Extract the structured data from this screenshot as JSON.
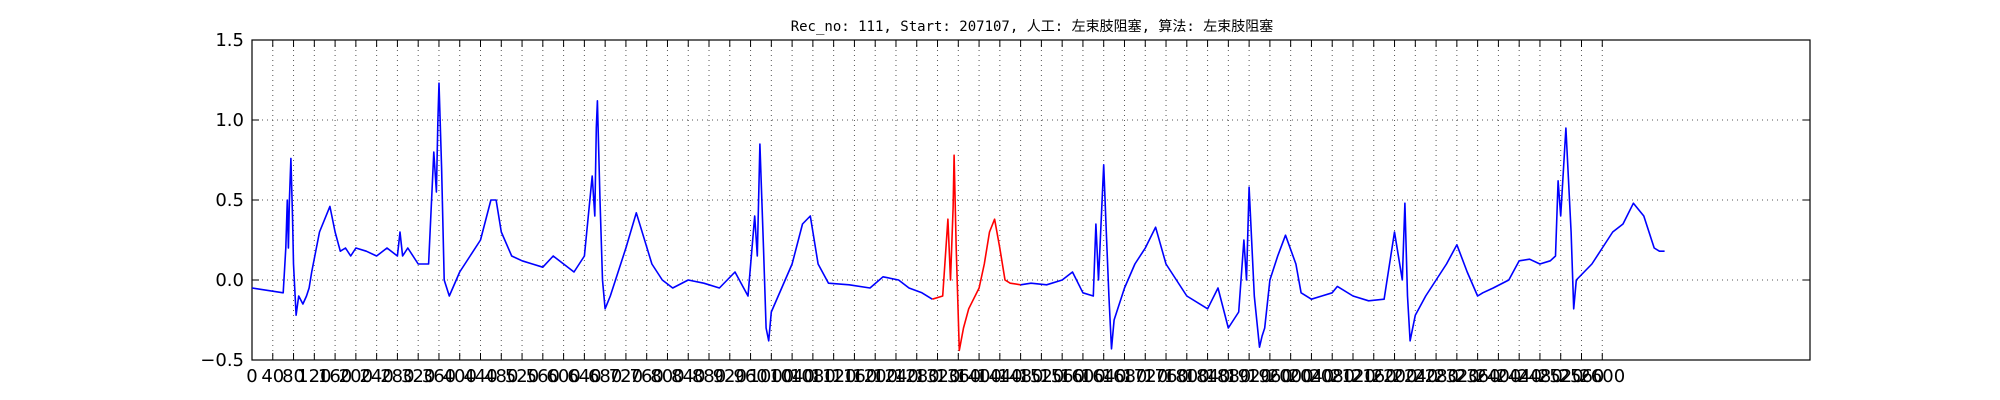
{
  "chart_data": {
    "type": "line",
    "title": "Rec_no: 111, Start: 207107, 人工: 左束肢阻塞, 算法: 左束肢阻塞",
    "xlabel": "",
    "ylabel": "",
    "xlim": [
      0,
      3000
    ],
    "ylim": [
      -0.5,
      1.5
    ],
    "grid": true,
    "y_ticks": [
      "−0.5",
      "0.0",
      "0.5",
      "1.0",
      "1.5"
    ],
    "x_ticks": [
      {
        "value": 0,
        "label": "0"
      },
      {
        "value": 40,
        "label": "40"
      },
      {
        "value": 80,
        "label": "80"
      },
      {
        "value": 120,
        "label": "120"
      },
      {
        "value": 160,
        "label": "160"
      },
      {
        "value": 200,
        "label": "200"
      },
      {
        "value": 240,
        "label": "240"
      },
      {
        "value": 280,
        "label": "280"
      },
      {
        "value": 320,
        "label": "320"
      },
      {
        "value": 360,
        "label": "360"
      },
      {
        "value": 400,
        "label": "400"
      },
      {
        "value": 440,
        "label": "440"
      },
      {
        "value": 480,
        "label": "480"
      },
      {
        "value": 520,
        "label": "520"
      },
      {
        "value": 560,
        "label": "560"
      },
      {
        "value": 600,
        "label": "600"
      },
      {
        "value": 640,
        "label": "640"
      },
      {
        "value": 680,
        "label": "680"
      },
      {
        "value": 720,
        "label": "720"
      },
      {
        "value": 760,
        "label": "760"
      },
      {
        "value": 800,
        "label": "800"
      },
      {
        "value": 840,
        "label": "840"
      },
      {
        "value": 880,
        "label": "880"
      },
      {
        "value": 920,
        "label": "920"
      },
      {
        "value": 960,
        "label": "960"
      },
      {
        "value": 1000,
        "label": "1000"
      },
      {
        "value": 1040,
        "label": "1040"
      },
      {
        "value": 1080,
        "label": "1080"
      },
      {
        "value": 1120,
        "label": "1120"
      },
      {
        "value": 1160,
        "label": "1160"
      },
      {
        "value": 1200,
        "label": "1200"
      },
      {
        "value": 1240,
        "label": "1240"
      },
      {
        "value": 1280,
        "label": "1280"
      },
      {
        "value": 1320,
        "label": "1320"
      },
      {
        "value": 1360,
        "label": "1360"
      },
      {
        "value": 1400,
        "label": "1400"
      },
      {
        "value": 1440,
        "label": "1440"
      },
      {
        "value": 1480,
        "label": "1480"
      },
      {
        "value": 1520,
        "label": "1520"
      },
      {
        "value": 1560,
        "label": "1560"
      },
      {
        "value": 1600,
        "label": "1600"
      },
      {
        "value": 1640,
        "label": "1640"
      },
      {
        "value": 1680,
        "label": "1680"
      },
      {
        "value": 1720,
        "label": "1720"
      },
      {
        "value": 1760,
        "label": "1760"
      },
      {
        "value": 1800,
        "label": "1800"
      },
      {
        "value": 1840,
        "label": "1840"
      },
      {
        "value": 1880,
        "label": "1880"
      },
      {
        "value": 1920,
        "label": "1920"
      },
      {
        "value": 1960,
        "label": "1960"
      },
      {
        "value": 2000,
        "label": "2000"
      },
      {
        "value": 2040,
        "label": "2040"
      },
      {
        "value": 2080,
        "label": "2080"
      },
      {
        "value": 2120,
        "label": "2120"
      },
      {
        "value": 2160,
        "label": "2160"
      },
      {
        "value": 2200,
        "label": "2200"
      },
      {
        "value": 2240,
        "label": "2240"
      },
      {
        "value": 2280,
        "label": "2280"
      },
      {
        "value": 2320,
        "label": "2320"
      },
      {
        "value": 2360,
        "label": "2360"
      },
      {
        "value": 2400,
        "label": "2400"
      },
      {
        "value": 2440,
        "label": "2440"
      },
      {
        "value": 2480,
        "label": "2480"
      },
      {
        "value": 2520,
        "label": "2520"
      },
      {
        "value": 2560,
        "label": "2560"
      },
      {
        "value": 2600,
        "label": "2600"
      }
    ],
    "colors": {
      "blue": "#0000ff",
      "red": "#ff0000",
      "grid": "#555555"
    },
    "series": [
      {
        "color": "blue",
        "x": [
          0,
          60,
          65,
          68,
          70,
          72,
          75,
          78,
          80,
          85,
          90,
          98,
          105,
          110,
          115,
          130,
          150,
          160,
          170,
          180,
          190,
          200,
          220,
          240,
          260,
          280,
          285,
          290,
          300,
          320,
          340,
          350,
          355,
          358,
          360,
          365,
          370,
          380,
          400,
          420,
          440,
          460,
          470,
          480,
          500,
          520,
          540,
          560,
          580,
          600,
          620,
          640,
          655,
          660,
          663,
          665,
          670,
          675,
          680,
          690,
          700,
          720,
          740,
          770,
          790,
          810,
          840,
          870,
          900,
          930,
          955,
          968,
          973,
          978,
          985,
          990,
          995,
          1000,
          1020,
          1040,
          1060,
          1075,
          1090,
          1110,
          1150,
          1190,
          1215,
          1245,
          1265,
          1290,
          1310
        ],
        "y": [
          -0.05,
          -0.08,
          0.2,
          0.5,
          0.2,
          0.5,
          0.76,
          0.4,
          0.1,
          -0.22,
          -0.1,
          -0.15,
          -0.1,
          -0.05,
          0.05,
          0.3,
          0.46,
          0.3,
          0.18,
          0.2,
          0.15,
          0.2,
          0.18,
          0.15,
          0.2,
          0.15,
          0.3,
          0.15,
          0.2,
          0.1,
          0.1,
          0.8,
          0.55,
          1.0,
          1.23,
          0.7,
          0.0,
          -0.1,
          0.05,
          0.15,
          0.25,
          0.5,
          0.5,
          0.3,
          0.15,
          0.12,
          0.1,
          0.08,
          0.15,
          0.1,
          0.05,
          0.15,
          0.65,
          0.4,
          0.95,
          1.12,
          0.5,
          0.0,
          -0.18,
          -0.1,
          0.0,
          0.2,
          0.42,
          0.1,
          0.0,
          -0.05,
          0.0,
          -0.02,
          -0.05,
          0.05,
          -0.1,
          0.4,
          0.15,
          0.85,
          0.2,
          -0.3,
          -0.38,
          -0.2,
          -0.05,
          0.1,
          0.35,
          0.4,
          0.1,
          -0.02,
          -0.03,
          -0.05,
          0.02,
          0.0,
          -0.05,
          -0.08,
          -0.12
        ]
      },
      {
        "color": "red",
        "x": [
          1310,
          1330,
          1340,
          1345,
          1350,
          1352,
          1356,
          1362,
          1370,
          1380,
          1400,
          1410,
          1420,
          1430,
          1440,
          1450,
          1460,
          1480
        ],
        "y": [
          -0.12,
          -0.1,
          0.38,
          0.0,
          0.45,
          0.78,
          0.2,
          -0.44,
          -0.3,
          -0.18,
          -0.05,
          0.1,
          0.3,
          0.38,
          0.2,
          0.0,
          -0.02,
          -0.03
        ]
      },
      {
        "color": "blue",
        "x": [
          1480,
          1500,
          1530,
          1560,
          1580,
          1600,
          1620,
          1625,
          1630,
          1640,
          1645,
          1650,
          1655,
          1660,
          1680,
          1700,
          1720,
          1740,
          1760,
          1800,
          1840,
          1860,
          1880,
          1900,
          1910,
          1915,
          1920,
          1930,
          1940,
          1945,
          1950,
          1960,
          1975,
          1990,
          2010,
          2020,
          2040,
          2060,
          2080,
          2090,
          2120,
          2150,
          2180,
          2200,
          2215,
          2220,
          2225,
          2230,
          2240,
          2260,
          2280,
          2300,
          2320,
          2340,
          2360,
          2370,
          2390,
          2420,
          2440,
          2460,
          2480,
          2500,
          2510,
          2515,
          2520,
          2530,
          2540,
          2545,
          2550,
          2565,
          2580,
          2600,
          2620,
          2640,
          2660,
          2680,
          2690,
          2700,
          2710,
          2720
        ],
        "y": [
          -0.03,
          -0.02,
          -0.03,
          0.0,
          0.05,
          -0.08,
          -0.1,
          0.35,
          0.0,
          0.72,
          0.3,
          -0.1,
          -0.43,
          -0.25,
          -0.05,
          0.1,
          0.2,
          0.33,
          0.1,
          -0.1,
          -0.18,
          -0.05,
          -0.3,
          -0.2,
          0.25,
          0.0,
          0.58,
          -0.1,
          -0.42,
          -0.35,
          -0.3,
          0.0,
          0.15,
          0.28,
          0.1,
          -0.08,
          -0.12,
          -0.1,
          -0.08,
          -0.04,
          -0.1,
          -0.13,
          -0.12,
          0.3,
          0.0,
          0.48,
          -0.1,
          -0.38,
          -0.22,
          -0.1,
          0.0,
          0.1,
          0.22,
          0.05,
          -0.1,
          -0.08,
          -0.05,
          0.0,
          0.12,
          0.13,
          0.1,
          0.12,
          0.15,
          0.62,
          0.4,
          0.95,
          0.3,
          -0.18,
          0.0,
          0.05,
          0.1,
          0.2,
          0.3,
          0.35,
          0.48,
          0.4,
          0.3,
          0.2,
          0.18,
          0.18
        ]
      }
    ]
  }
}
